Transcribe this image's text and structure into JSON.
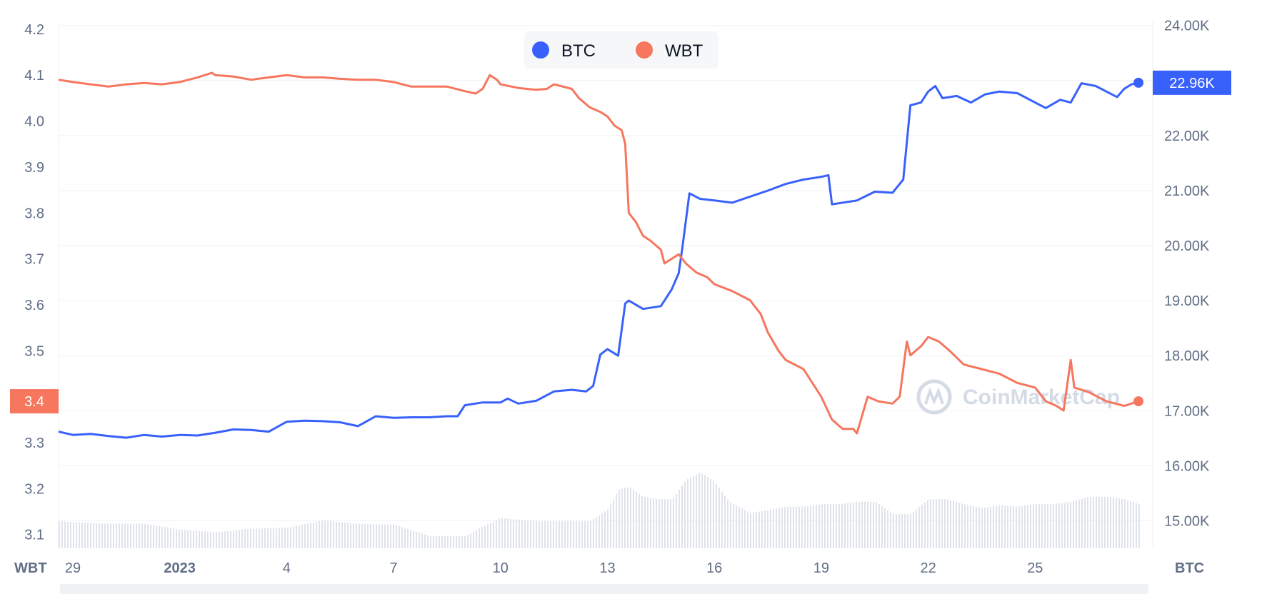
{
  "chart_data": {
    "type": "line",
    "legend": {
      "placement": "top-center"
    },
    "grid": true,
    "left_axis": {
      "name": "WBT",
      "range": [
        3.07,
        4.22
      ],
      "ticks": [
        "4.2",
        "4.1",
        "4.0",
        "3.9",
        "3.8",
        "3.7",
        "3.6",
        "3.5",
        "3.4",
        "3.3",
        "3.2",
        "3.1"
      ]
    },
    "right_axis": {
      "name": "BTC",
      "range": [
        14500,
        24100
      ],
      "ticks": [
        "24.00K",
        "23.00K",
        "22.00K",
        "21.00K",
        "20.00K",
        "19.00K",
        "18.00K",
        "17.00K",
        "16.00K",
        "15.00K"
      ]
    },
    "x_axis": {
      "range": [
        28.6,
        59.3
      ],
      "ticks": [
        {
          "x": 29,
          "label": "29",
          "bold": false
        },
        {
          "x": 32,
          "label": "2023",
          "bold": true
        },
        {
          "x": 35,
          "label": "4",
          "bold": false
        },
        {
          "x": 38,
          "label": "7",
          "bold": false
        },
        {
          "x": 41,
          "label": "10",
          "bold": false
        },
        {
          "x": 44,
          "label": "13",
          "bold": false
        },
        {
          "x": 47,
          "label": "16",
          "bold": false
        },
        {
          "x": 50,
          "label": "19",
          "bold": false
        },
        {
          "x": 53,
          "label": "22",
          "bold": false
        },
        {
          "x": 56,
          "label": "25",
          "bold": false
        }
      ]
    },
    "series": [
      {
        "name": "BTC",
        "axis": "right",
        "color": "#3861fb",
        "current_label": "22.96K",
        "points": [
          [
            28.6,
            16620
          ],
          [
            29.0,
            16560
          ],
          [
            29.5,
            16580
          ],
          [
            30.0,
            16540
          ],
          [
            30.5,
            16510
          ],
          [
            31.0,
            16560
          ],
          [
            31.5,
            16530
          ],
          [
            32.0,
            16560
          ],
          [
            32.5,
            16550
          ],
          [
            33.0,
            16600
          ],
          [
            33.5,
            16660
          ],
          [
            34.0,
            16650
          ],
          [
            34.5,
            16620
          ],
          [
            35.0,
            16800
          ],
          [
            35.5,
            16820
          ],
          [
            36.0,
            16810
          ],
          [
            36.5,
            16790
          ],
          [
            37.0,
            16720
          ],
          [
            37.5,
            16900
          ],
          [
            38.0,
            16870
          ],
          [
            38.5,
            16880
          ],
          [
            39.0,
            16880
          ],
          [
            39.5,
            16900
          ],
          [
            39.8,
            16900
          ],
          [
            40.0,
            17100
          ],
          [
            40.5,
            17150
          ],
          [
            41.0,
            17150
          ],
          [
            41.2,
            17220
          ],
          [
            41.5,
            17130
          ],
          [
            42.0,
            17180
          ],
          [
            42.5,
            17350
          ],
          [
            43.0,
            17380
          ],
          [
            43.4,
            17350
          ],
          [
            43.6,
            17450
          ],
          [
            43.8,
            18020
          ],
          [
            44.0,
            18120
          ],
          [
            44.3,
            18000
          ],
          [
            44.5,
            18950
          ],
          [
            44.6,
            19000
          ],
          [
            45.0,
            18850
          ],
          [
            45.5,
            18900
          ],
          [
            45.8,
            19200
          ],
          [
            46.0,
            19500
          ],
          [
            46.1,
            19950
          ],
          [
            46.3,
            20950
          ],
          [
            46.6,
            20850
          ],
          [
            47.0,
            20820
          ],
          [
            47.5,
            20780
          ],
          [
            48.0,
            20890
          ],
          [
            48.5,
            21000
          ],
          [
            49.0,
            21120
          ],
          [
            49.5,
            21200
          ],
          [
            50.0,
            21250
          ],
          [
            50.2,
            21280
          ],
          [
            50.3,
            20750
          ],
          [
            50.6,
            20780
          ],
          [
            51.0,
            20820
          ],
          [
            51.5,
            20980
          ],
          [
            52.0,
            20960
          ],
          [
            52.3,
            21200
          ],
          [
            52.5,
            22550
          ],
          [
            52.8,
            22600
          ],
          [
            53.0,
            22800
          ],
          [
            53.2,
            22900
          ],
          [
            53.4,
            22680
          ],
          [
            53.8,
            22720
          ],
          [
            54.2,
            22600
          ],
          [
            54.6,
            22750
          ],
          [
            55.0,
            22800
          ],
          [
            55.5,
            22770
          ],
          [
            56.0,
            22600
          ],
          [
            56.3,
            22500
          ],
          [
            56.7,
            22650
          ],
          [
            57.0,
            22600
          ],
          [
            57.3,
            22950
          ],
          [
            57.7,
            22900
          ],
          [
            58.0,
            22800
          ],
          [
            58.3,
            22700
          ],
          [
            58.5,
            22850
          ],
          [
            58.7,
            22930
          ],
          [
            58.9,
            22960
          ]
        ]
      },
      {
        "name": "WBT",
        "axis": "left",
        "color": "#f6765e",
        "current_label": "3.4",
        "points": [
          [
            28.6,
            4.09
          ],
          [
            29.0,
            4.085
          ],
          [
            29.5,
            4.08
          ],
          [
            30.0,
            4.075
          ],
          [
            30.5,
            4.08
          ],
          [
            31.0,
            4.083
          ],
          [
            31.5,
            4.08
          ],
          [
            32.0,
            4.085
          ],
          [
            32.5,
            4.095
          ],
          [
            32.9,
            4.105
          ],
          [
            33.0,
            4.1
          ],
          [
            33.5,
            4.097
          ],
          [
            34.0,
            4.09
          ],
          [
            34.5,
            4.095
          ],
          [
            35.0,
            4.1
          ],
          [
            35.5,
            4.095
          ],
          [
            36.0,
            4.095
          ],
          [
            36.5,
            4.092
          ],
          [
            37.0,
            4.09
          ],
          [
            37.5,
            4.09
          ],
          [
            38.0,
            4.085
          ],
          [
            38.5,
            4.075
          ],
          [
            39.0,
            4.075
          ],
          [
            39.5,
            4.075
          ],
          [
            40.0,
            4.065
          ],
          [
            40.3,
            4.06
          ],
          [
            40.5,
            4.07
          ],
          [
            40.7,
            4.1
          ],
          [
            40.9,
            4.09
          ],
          [
            41.0,
            4.08
          ],
          [
            41.5,
            4.072
          ],
          [
            42.0,
            4.068
          ],
          [
            42.3,
            4.07
          ],
          [
            42.5,
            4.08
          ],
          [
            43.0,
            4.07
          ],
          [
            43.2,
            4.05
          ],
          [
            43.5,
            4.03
          ],
          [
            43.8,
            4.02
          ],
          [
            44.0,
            4.01
          ],
          [
            44.2,
            3.99
          ],
          [
            44.4,
            3.98
          ],
          [
            44.5,
            3.95
          ],
          [
            44.6,
            3.8
          ],
          [
            44.8,
            3.78
          ],
          [
            45.0,
            3.75
          ],
          [
            45.2,
            3.74
          ],
          [
            45.5,
            3.72
          ],
          [
            45.6,
            3.69
          ],
          [
            46.0,
            3.71
          ],
          [
            46.2,
            3.69
          ],
          [
            46.5,
            3.67
          ],
          [
            46.8,
            3.66
          ],
          [
            47.0,
            3.645
          ],
          [
            47.5,
            3.63
          ],
          [
            48.0,
            3.61
          ],
          [
            48.3,
            3.58
          ],
          [
            48.5,
            3.54
          ],
          [
            48.8,
            3.5
          ],
          [
            49.0,
            3.48
          ],
          [
            49.5,
            3.46
          ],
          [
            50.0,
            3.4
          ],
          [
            50.3,
            3.35
          ],
          [
            50.6,
            3.33
          ],
          [
            50.9,
            3.33
          ],
          [
            51.0,
            3.32
          ],
          [
            51.3,
            3.4
          ],
          [
            51.6,
            3.39
          ],
          [
            52.0,
            3.385
          ],
          [
            52.2,
            3.4
          ],
          [
            52.4,
            3.52
          ],
          [
            52.5,
            3.49
          ],
          [
            52.8,
            3.51
          ],
          [
            53.0,
            3.53
          ],
          [
            53.3,
            3.52
          ],
          [
            53.6,
            3.5
          ],
          [
            54.0,
            3.47
          ],
          [
            54.5,
            3.46
          ],
          [
            55.0,
            3.45
          ],
          [
            55.5,
            3.43
          ],
          [
            56.0,
            3.42
          ],
          [
            56.3,
            3.39
          ],
          [
            56.6,
            3.38
          ],
          [
            56.8,
            3.37
          ],
          [
            57.0,
            3.48
          ],
          [
            57.1,
            3.42
          ],
          [
            57.5,
            3.41
          ],
          [
            58.0,
            3.39
          ],
          [
            58.5,
            3.38
          ],
          [
            58.9,
            3.39
          ]
        ]
      }
    ],
    "volume": {
      "points": [
        [
          28.6,
          0.55
        ],
        [
          30.0,
          0.5
        ],
        [
          31.0,
          0.5
        ],
        [
          32.0,
          0.38
        ],
        [
          33.0,
          0.33
        ],
        [
          34.0,
          0.4
        ],
        [
          35.0,
          0.42
        ],
        [
          36.0,
          0.57
        ],
        [
          37.0,
          0.5
        ],
        [
          38.0,
          0.48
        ],
        [
          39.0,
          0.25
        ],
        [
          40.0,
          0.25
        ],
        [
          40.5,
          0.45
        ],
        [
          41.0,
          0.62
        ],
        [
          42.0,
          0.55
        ],
        [
          43.0,
          0.55
        ],
        [
          43.5,
          0.55
        ],
        [
          44.0,
          0.8
        ],
        [
          44.3,
          1.2
        ],
        [
          44.6,
          1.25
        ],
        [
          45.0,
          1.05
        ],
        [
          45.4,
          1.0
        ],
        [
          45.8,
          1.0
        ],
        [
          46.2,
          1.4
        ],
        [
          46.6,
          1.55
        ],
        [
          47.0,
          1.35
        ],
        [
          47.4,
          0.95
        ],
        [
          48.0,
          0.72
        ],
        [
          48.5,
          0.78
        ],
        [
          49.0,
          0.85
        ],
        [
          49.5,
          0.85
        ],
        [
          50.0,
          0.9
        ],
        [
          50.5,
          0.9
        ],
        [
          51.0,
          0.95
        ],
        [
          51.5,
          0.95
        ],
        [
          52.0,
          0.7
        ],
        [
          52.5,
          0.7
        ],
        [
          53.0,
          1.0
        ],
        [
          53.5,
          1.0
        ],
        [
          54.0,
          0.9
        ],
        [
          54.5,
          0.82
        ],
        [
          55.0,
          0.88
        ],
        [
          55.5,
          0.85
        ],
        [
          56.0,
          0.9
        ],
        [
          56.5,
          0.9
        ],
        [
          57.0,
          0.95
        ],
        [
          57.5,
          1.05
        ],
        [
          58.0,
          1.05
        ],
        [
          58.5,
          1.0
        ],
        [
          58.9,
          0.9
        ]
      ]
    },
    "watermark": "CoinMarketCap"
  }
}
